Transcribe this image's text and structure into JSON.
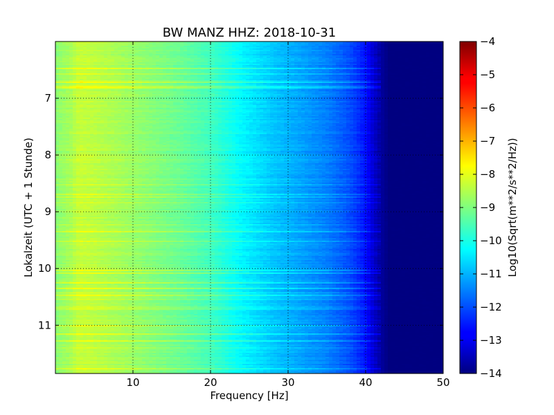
{
  "chart_data": {
    "type": "heatmap",
    "title": "BW MANZ HHZ: 2018-10-31",
    "xlabel": "Frequency [Hz]",
    "ylabel": "Lokalzeit (UTC + 1 Stunde)",
    "xlim": [
      0,
      50
    ],
    "ylim": [
      6.0,
      11.85
    ],
    "x_ticks": [
      10,
      20,
      30,
      40,
      50
    ],
    "y_ticks": [
      7,
      8,
      9,
      10,
      11
    ],
    "grid": true,
    "colormap": "jet",
    "colorbar": {
      "label": "Log10(Sqrt(m**2/s**2/Hz))",
      "range": [
        -14,
        -4
      ],
      "ticks": [
        -4,
        -5,
        -6,
        -7,
        -8,
        -9,
        -10,
        -11,
        -12,
        -13,
        -14
      ]
    },
    "spectrum_profile": {
      "frequency_hz": [
        0,
        2,
        3,
        5,
        8,
        12,
        16,
        20,
        24,
        28,
        32,
        35,
        38,
        40,
        41,
        42,
        43,
        50
      ],
      "log10_amplitude": [
        -8.9,
        -8.6,
        -8.3,
        -8.4,
        -8.6,
        -8.9,
        -9.2,
        -9.6,
        -10.3,
        -10.8,
        -11.2,
        -11.5,
        -12.0,
        -12.6,
        -13.2,
        -13.7,
        -14.0,
        -14.0
      ]
    }
  }
}
